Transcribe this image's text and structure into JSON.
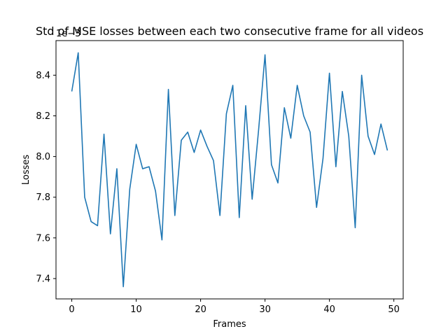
{
  "chart_data": {
    "type": "line",
    "title": "Std of MSE losses between each two consecutive frame for all videos",
    "xlabel": "Frames",
    "ylabel": "Losses",
    "y_offset_label": "1e−3",
    "xlim": [
      -2.45,
      51.45
    ],
    "ylim": [
      7.3,
      8.57
    ],
    "x_ticks": [
      0,
      10,
      20,
      30,
      40,
      50
    ],
    "y_ticks": [
      7.4,
      7.6,
      7.8,
      8.0,
      8.2,
      8.4
    ],
    "x_tick_labels": [
      "0",
      "10",
      "20",
      "30",
      "40",
      "50"
    ],
    "y_tick_labels": [
      "7.4",
      "7.6",
      "7.8",
      "8.0",
      "8.2",
      "8.4"
    ],
    "grid": false,
    "color": "#1f77b4",
    "series": [
      {
        "x": [
          0,
          1,
          2,
          3,
          4,
          5,
          6,
          7,
          8,
          9,
          10,
          11,
          12,
          13,
          14,
          15,
          16,
          17,
          18,
          19,
          20,
          21,
          22,
          23,
          24,
          25,
          26,
          27,
          28,
          29,
          30,
          31,
          32,
          33,
          34,
          35,
          36,
          37,
          38,
          39,
          40,
          41,
          42,
          43,
          44,
          45,
          46,
          47,
          48,
          49
        ],
        "values": [
          8.32,
          8.51,
          7.8,
          7.68,
          7.66,
          8.11,
          7.62,
          7.94,
          7.36,
          7.84,
          8.06,
          7.94,
          7.95,
          7.83,
          7.59,
          8.33,
          7.71,
          8.08,
          8.12,
          8.02,
          8.13,
          8.05,
          7.98,
          7.71,
          8.21,
          8.35,
          7.7,
          8.25,
          7.79,
          8.13,
          8.5,
          7.96,
          7.87,
          8.24,
          8.09,
          8.35,
          8.2,
          8.12,
          7.75,
          7.99,
          8.41,
          7.95,
          8.32,
          8.1,
          7.65,
          8.4,
          8.1,
          8.01,
          8.16,
          8.03
        ]
      }
    ]
  }
}
